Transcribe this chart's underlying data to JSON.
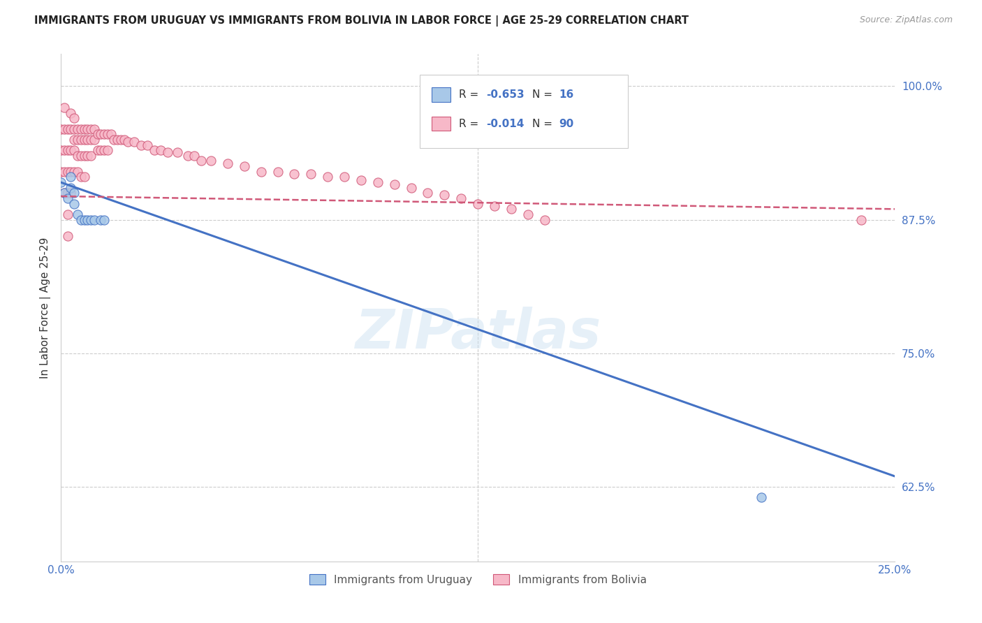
{
  "title": "IMMIGRANTS FROM URUGUAY VS IMMIGRANTS FROM BOLIVIA IN LABOR FORCE | AGE 25-29 CORRELATION CHART",
  "source": "Source: ZipAtlas.com",
  "ylabel": "In Labor Force | Age 25-29",
  "watermark": "ZIPatlas",
  "xlim": [
    0.0,
    0.25
  ],
  "ylim": [
    0.555,
    1.03
  ],
  "ytick_right_labels": [
    "100.0%",
    "87.5%",
    "75.0%",
    "62.5%"
  ],
  "ytick_right_values": [
    1.0,
    0.875,
    0.75,
    0.625
  ],
  "legend_r_uruguay": "-0.653",
  "legend_n_uruguay": "16",
  "legend_r_bolivia": "-0.014",
  "legend_n_bolivia": "90",
  "uruguay_color": "#a8c8e8",
  "bolivia_color": "#f7b8c8",
  "line_uruguay_color": "#4472c4",
  "line_bolivia_color": "#d05878",
  "legend_label_uruguay": "Immigrants from Uruguay",
  "legend_label_bolivia": "Immigrants from Bolivia",
  "uru_x": [
    0.0,
    0.001,
    0.002,
    0.003,
    0.003,
    0.004,
    0.004,
    0.005,
    0.006,
    0.007,
    0.008,
    0.009,
    0.01,
    0.012,
    0.013,
    0.21
  ],
  "uru_y": [
    0.91,
    0.9,
    0.895,
    0.915,
    0.905,
    0.9,
    0.89,
    0.88,
    0.875,
    0.875,
    0.875,
    0.875,
    0.875,
    0.875,
    0.875,
    0.615
  ],
  "bol_x": [
    0.0,
    0.0,
    0.0,
    0.001,
    0.001,
    0.001,
    0.001,
    0.001,
    0.002,
    0.002,
    0.002,
    0.002,
    0.002,
    0.002,
    0.003,
    0.003,
    0.003,
    0.003,
    0.003,
    0.004,
    0.004,
    0.004,
    0.004,
    0.004,
    0.005,
    0.005,
    0.005,
    0.005,
    0.006,
    0.006,
    0.006,
    0.006,
    0.007,
    0.007,
    0.007,
    0.007,
    0.008,
    0.008,
    0.008,
    0.009,
    0.009,
    0.009,
    0.01,
    0.01,
    0.011,
    0.011,
    0.012,
    0.012,
    0.013,
    0.013,
    0.014,
    0.014,
    0.015,
    0.016,
    0.017,
    0.018,
    0.019,
    0.02,
    0.022,
    0.024,
    0.026,
    0.028,
    0.03,
    0.032,
    0.035,
    0.038,
    0.04,
    0.042,
    0.045,
    0.05,
    0.055,
    0.06,
    0.065,
    0.07,
    0.075,
    0.08,
    0.085,
    0.09,
    0.095,
    0.1,
    0.105,
    0.11,
    0.115,
    0.12,
    0.125,
    0.13,
    0.135,
    0.14,
    0.145,
    0.24
  ],
  "bol_y": [
    0.96,
    0.94,
    0.92,
    0.98,
    0.96,
    0.94,
    0.92,
    0.9,
    0.96,
    0.94,
    0.92,
    0.9,
    0.88,
    0.86,
    0.975,
    0.96,
    0.94,
    0.92,
    0.9,
    0.97,
    0.96,
    0.95,
    0.94,
    0.92,
    0.96,
    0.95,
    0.935,
    0.92,
    0.96,
    0.95,
    0.935,
    0.915,
    0.96,
    0.95,
    0.935,
    0.915,
    0.96,
    0.95,
    0.935,
    0.96,
    0.95,
    0.935,
    0.96,
    0.95,
    0.955,
    0.94,
    0.955,
    0.94,
    0.955,
    0.94,
    0.955,
    0.94,
    0.955,
    0.95,
    0.95,
    0.95,
    0.95,
    0.948,
    0.948,
    0.945,
    0.945,
    0.94,
    0.94,
    0.938,
    0.938,
    0.935,
    0.935,
    0.93,
    0.93,
    0.928,
    0.925,
    0.92,
    0.92,
    0.918,
    0.918,
    0.915,
    0.915,
    0.912,
    0.91,
    0.908,
    0.905,
    0.9,
    0.898,
    0.895,
    0.89,
    0.888,
    0.885,
    0.88,
    0.875,
    0.875
  ],
  "line_uru_x0": 0.0,
  "line_uru_x1": 0.25,
  "line_uru_y0": 0.91,
  "line_uru_y1": 0.635,
  "line_bol_x0": 0.0,
  "line_bol_x1": 0.25,
  "line_bol_y0": 0.897,
  "line_bol_y1": 0.885
}
